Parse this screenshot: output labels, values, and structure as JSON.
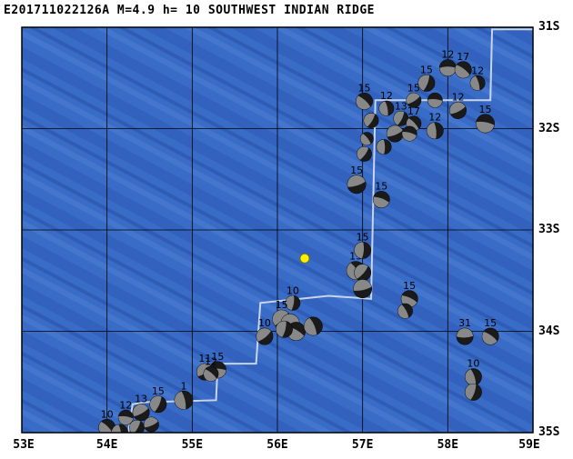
{
  "header": {
    "title": "E201711022126A M=4.9 h= 10 SOUTHWEST INDIAN RIDGE"
  },
  "map": {
    "lon_range": [
      53,
      59
    ],
    "lat_range": [
      -35,
      -31
    ],
    "lon_labels": [
      "53E",
      "54E",
      "55E",
      "56E",
      "57E",
      "58E",
      "59E"
    ],
    "lat_labels": [
      "31S",
      "32S",
      "33S",
      "34S",
      "35S"
    ],
    "colors": {
      "ocean": "#3a6cc6",
      "ocean_dark": "#2a54ac",
      "ridge": "#5a8ad8",
      "plate_boundary": "#c8d4ea",
      "event_marker": "#ffee00"
    },
    "plate_boundary": [
      [
        59.0,
        -31.02
      ],
      [
        58.52,
        -31.02
      ],
      [
        58.5,
        -31.72
      ],
      [
        57.15,
        -31.72
      ],
      [
        57.1,
        -33.68
      ],
      [
        56.6,
        -33.65
      ],
      [
        55.8,
        -33.72
      ],
      [
        55.75,
        -34.32
      ],
      [
        55.3,
        -34.32
      ],
      [
        55.28,
        -34.68
      ],
      [
        54.45,
        -34.7
      ],
      [
        54.3,
        -34.72
      ],
      [
        54.25,
        -35.0
      ]
    ],
    "event": {
      "lon": 56.32,
      "lat": -33.28
    },
    "mechanisms": [
      {
        "lon": 58.0,
        "lat": -31.4,
        "label": "12",
        "r": 9
      },
      {
        "lon": 58.18,
        "lat": -31.42,
        "label": "17",
        "r": 9
      },
      {
        "lon": 58.35,
        "lat": -31.55,
        "label": "12",
        "r": 8
      },
      {
        "lon": 57.75,
        "lat": -31.55,
        "label": "15",
        "r": 9
      },
      {
        "lon": 57.6,
        "lat": -31.72,
        "label": "15",
        "r": 8
      },
      {
        "lon": 57.85,
        "lat": -31.72,
        "label": "",
        "r": 8
      },
      {
        "lon": 57.02,
        "lat": -31.73,
        "label": "15",
        "r": 9
      },
      {
        "lon": 57.28,
        "lat": -31.8,
        "label": "12",
        "r": 8
      },
      {
        "lon": 57.45,
        "lat": -31.9,
        "label": "13",
        "r": 8
      },
      {
        "lon": 58.12,
        "lat": -31.82,
        "label": "12",
        "r": 9
      },
      {
        "lon": 58.44,
        "lat": -31.95,
        "label": "15",
        "r": 10
      },
      {
        "lon": 57.6,
        "lat": -31.95,
        "label": "17",
        "r": 8
      },
      {
        "lon": 57.85,
        "lat": -32.02,
        "label": "12",
        "r": 9
      },
      {
        "lon": 57.1,
        "lat": -31.92,
        "label": "",
        "r": 8
      },
      {
        "lon": 57.38,
        "lat": -32.05,
        "label": "",
        "r": 9
      },
      {
        "lon": 57.55,
        "lat": -32.05,
        "label": "",
        "r": 8
      },
      {
        "lon": 57.05,
        "lat": -32.1,
        "label": "",
        "r": 7
      },
      {
        "lon": 57.25,
        "lat": -32.18,
        "label": "",
        "r": 8
      },
      {
        "lon": 57.02,
        "lat": -32.25,
        "label": "",
        "r": 8
      },
      {
        "lon": 56.93,
        "lat": -32.55,
        "label": "15",
        "r": 10
      },
      {
        "lon": 57.22,
        "lat": -32.7,
        "label": "15",
        "r": 9
      },
      {
        "lon": 56.92,
        "lat": -33.4,
        "label": "15",
        "r": 10
      },
      {
        "lon": 57.0,
        "lat": -33.2,
        "label": "15",
        "r": 9
      },
      {
        "lon": 57.0,
        "lat": -33.42,
        "label": "",
        "r": 9
      },
      {
        "lon": 57.0,
        "lat": -33.58,
        "label": "",
        "r": 10
      },
      {
        "lon": 57.55,
        "lat": -33.68,
        "label": "15",
        "r": 9
      },
      {
        "lon": 57.5,
        "lat": -33.8,
        "label": "",
        "r": 8
      },
      {
        "lon": 56.18,
        "lat": -33.72,
        "label": "10",
        "r": 8
      },
      {
        "lon": 56.05,
        "lat": -33.88,
        "label": "15",
        "r": 10
      },
      {
        "lon": 56.15,
        "lat": -33.92,
        "label": "",
        "r": 10
      },
      {
        "lon": 56.22,
        "lat": -34.0,
        "label": "",
        "r": 10
      },
      {
        "lon": 56.42,
        "lat": -33.95,
        "label": "",
        "r": 10
      },
      {
        "lon": 56.08,
        "lat": -33.98,
        "label": "",
        "r": 9
      },
      {
        "lon": 55.85,
        "lat": -34.05,
        "label": "10",
        "r": 9
      },
      {
        "lon": 58.2,
        "lat": -34.05,
        "label": "31",
        "r": 9
      },
      {
        "lon": 58.5,
        "lat": -34.05,
        "label": "15",
        "r": 9
      },
      {
        "lon": 58.3,
        "lat": -34.45,
        "label": "10",
        "r": 9
      },
      {
        "lon": 58.3,
        "lat": -34.6,
        "label": "",
        "r": 9
      },
      {
        "lon": 55.15,
        "lat": -34.4,
        "label": "11",
        "r": 9
      },
      {
        "lon": 55.3,
        "lat": -34.38,
        "label": "15",
        "r": 9
      },
      {
        "lon": 55.22,
        "lat": -34.42,
        "label": "12",
        "r": 8
      },
      {
        "lon": 54.9,
        "lat": -34.68,
        "label": "1",
        "r": 10
      },
      {
        "lon": 54.6,
        "lat": -34.72,
        "label": "15",
        "r": 9
      },
      {
        "lon": 54.4,
        "lat": -34.8,
        "label": "13",
        "r": 9
      },
      {
        "lon": 54.22,
        "lat": -34.85,
        "label": "12",
        "r": 8
      },
      {
        "lon": 54.0,
        "lat": -34.95,
        "label": "10",
        "r": 9
      },
      {
        "lon": 54.15,
        "lat": -35.0,
        "label": "",
        "r": 9
      },
      {
        "lon": 54.35,
        "lat": -34.95,
        "label": "",
        "r": 8
      },
      {
        "lon": 54.52,
        "lat": -34.92,
        "label": "",
        "r": 8
      },
      {
        "lon": 54.1,
        "lat": -35.12,
        "label": "",
        "r": 10
      },
      {
        "lon": 54.3,
        "lat": -35.1,
        "label": "",
        "r": 8
      },
      {
        "lon": 54.48,
        "lat": -35.15,
        "label": "",
        "r": 8
      },
      {
        "lon": 54.15,
        "lat": -35.22,
        "label": "",
        "r": 9
      }
    ]
  }
}
